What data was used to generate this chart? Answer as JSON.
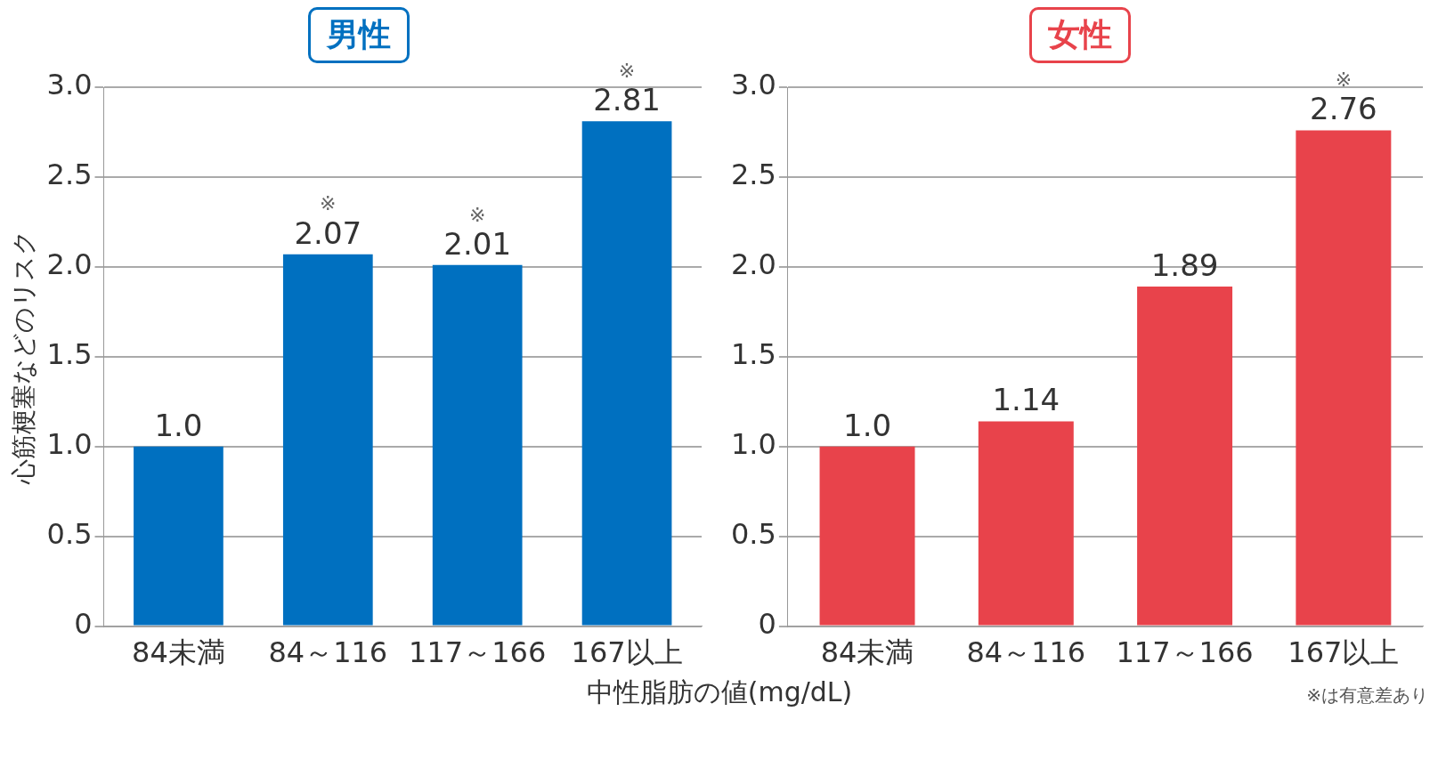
{
  "chart_data": [
    {
      "type": "bar",
      "title": "男性",
      "ylabel": "心筋梗塞などのリスク",
      "xlabel": "中性脂肪の値(mg/dL)",
      "categories": [
        "84未満",
        "84～116",
        "117～166",
        "167以上"
      ],
      "values": [
        1.0,
        2.07,
        2.01,
        2.81
      ],
      "value_labels": [
        "1.0",
        "2.07",
        "2.01",
        "2.81"
      ],
      "color": "#0070c0",
      "ylim": [
        0,
        3
      ],
      "yticks": [
        0,
        {
          "value": 0.5,
          "label": "0.5"
        },
        {
          "value": 1,
          "label": "1.0"
        },
        {
          "value": 1.5,
          "label": "1.5"
        },
        {
          "value": 2,
          "label": "2.0"
        },
        {
          "value": 2.5,
          "label": "2.5"
        },
        {
          "value": 3,
          "label": "3.0"
        }
      ],
      "grid": "y",
      "annotations": [
        {
          "text": "※",
          "x": "84～116",
          "y": 2.07
        },
        {
          "text": "※",
          "x": "117～166",
          "y": 2.01
        },
        {
          "text": "※",
          "x": "167以上",
          "y": 2.81
        }
      ]
    },
    {
      "type": "bar",
      "title": "女性",
      "categories": [
        "84未満",
        "84～116",
        "117～166",
        "167以上"
      ],
      "values": [
        1.0,
        1.14,
        1.89,
        2.76
      ],
      "value_labels": [
        "1.0",
        "1.14",
        "1.89",
        "2.76"
      ],
      "color": "#e8434b",
      "ylim": [
        0,
        3
      ],
      "yticks": [
        0,
        {
          "value": 0.5,
          "label": "0.5"
        },
        {
          "value": 1,
          "label": "1.0"
        },
        {
          "value": 1.5,
          "label": "1.5"
        },
        {
          "value": 2,
          "label": "2.0"
        },
        {
          "value": 2.5,
          "label": "2.5"
        },
        {
          "value": 3,
          "label": "3.0"
        }
      ],
      "grid": "y",
      "annotations": [
        {
          "text": "※",
          "x": "167以上",
          "y": 2.76
        },
        "※は有意差あり"
      ]
    }
  ]
}
